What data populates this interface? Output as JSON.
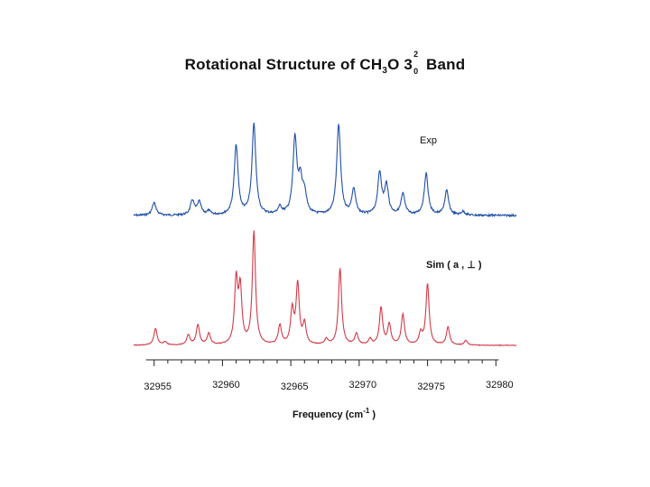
{
  "chart_data": {
    "type": "line",
    "title_main": "Rotational  Structure of CH",
    "title_sub": "3",
    "title_mid": "O 3",
    "title_sup": "2",
    "title_subsub": "0",
    "title_end": " Band",
    "xlabel": "Frequency (cm",
    "xlabel_sup": "-1",
    "xlabel_end": " )",
    "xlim": [
      32953.5,
      32981.5
    ],
    "xticks": [
      32955,
      32960,
      32965,
      32970,
      32975,
      32980
    ],
    "xtick_labels": [
      "32955",
      "32960",
      "32965",
      "32970",
      "32975",
      "32980"
    ],
    "series": [
      {
        "name": "Exp",
        "color": "#1f4fa8",
        "peaks": [
          {
            "x": 32955.0,
            "h": 0.14
          },
          {
            "x": 32957.8,
            "h": 0.16
          },
          {
            "x": 32958.3,
            "h": 0.14
          },
          {
            "x": 32959.0,
            "h": 0.04
          },
          {
            "x": 32961.0,
            "h": 0.77
          },
          {
            "x": 32962.3,
            "h": 1.0
          },
          {
            "x": 32964.2,
            "h": 0.08
          },
          {
            "x": 32965.3,
            "h": 0.84
          },
          {
            "x": 32965.7,
            "h": 0.34
          },
          {
            "x": 32966.0,
            "h": 0.22
          },
          {
            "x": 32968.5,
            "h": 1.0
          },
          {
            "x": 32969.6,
            "h": 0.28
          },
          {
            "x": 32971.5,
            "h": 0.46
          },
          {
            "x": 32972.0,
            "h": 0.32
          },
          {
            "x": 32973.2,
            "h": 0.23
          },
          {
            "x": 32974.9,
            "h": 0.46
          },
          {
            "x": 32976.4,
            "h": 0.27
          },
          {
            "x": 32977.6,
            "h": 0.04
          }
        ]
      },
      {
        "name": "Sim ( a , ⊥  )",
        "color": "#d23a48",
        "peaks": [
          {
            "x": 32955.1,
            "h": 0.15
          },
          {
            "x": 32955.8,
            "h": 0.03
          },
          {
            "x": 32957.5,
            "h": 0.09
          },
          {
            "x": 32958.2,
            "h": 0.18
          },
          {
            "x": 32959.0,
            "h": 0.1
          },
          {
            "x": 32961.0,
            "h": 0.56
          },
          {
            "x": 32961.3,
            "h": 0.48
          },
          {
            "x": 32962.3,
            "h": 1.0
          },
          {
            "x": 32964.2,
            "h": 0.17
          },
          {
            "x": 32965.1,
            "h": 0.3
          },
          {
            "x": 32965.5,
            "h": 0.53
          },
          {
            "x": 32966.0,
            "h": 0.18
          },
          {
            "x": 32967.6,
            "h": 0.05
          },
          {
            "x": 32968.6,
            "h": 0.68
          },
          {
            "x": 32969.8,
            "h": 0.1
          },
          {
            "x": 32970.8,
            "h": 0.05
          },
          {
            "x": 32971.6,
            "h": 0.33
          },
          {
            "x": 32972.2,
            "h": 0.18
          },
          {
            "x": 32973.2,
            "h": 0.27
          },
          {
            "x": 32974.5,
            "h": 0.1
          },
          {
            "x": 32975.0,
            "h": 0.54
          },
          {
            "x": 32976.5,
            "h": 0.16
          },
          {
            "x": 32977.8,
            "h": 0.04
          }
        ]
      }
    ],
    "grid": false,
    "legend": "labels placed beside each trace"
  }
}
